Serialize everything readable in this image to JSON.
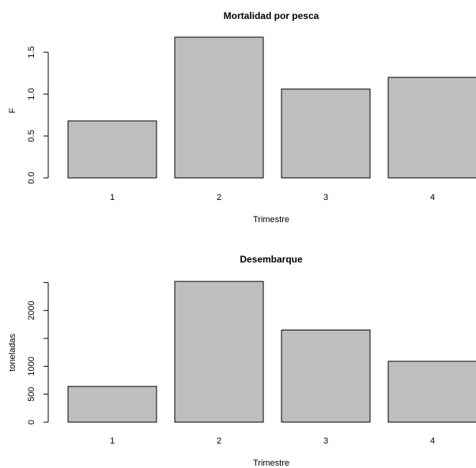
{
  "chart_data": [
    {
      "type": "bar",
      "title": "Mortalidad por pesca",
      "xlabel": "Trimestre",
      "ylabel": "F",
      "categories": [
        "1",
        "2",
        "3",
        "4"
      ],
      "values": [
        0.68,
        1.68,
        1.06,
        1.2
      ],
      "ylim": [
        0,
        1.68
      ],
      "yticks": [
        0,
        0.5,
        1,
        1.5
      ],
      "ytick_labels": [
        "0.0",
        "0.5",
        "1.0",
        "1.5"
      ],
      "bar_color": "#bebebe",
      "grid": false
    },
    {
      "type": "bar",
      "title": "Desembarque",
      "xlabel": "Trimestre",
      "ylabel": "toneladas",
      "categories": [
        "1",
        "2",
        "3",
        "4"
      ],
      "values": [
        640,
        2520,
        1650,
        1090
      ],
      "ylim": [
        0,
        2520
      ],
      "yticks": [
        0,
        500,
        1000,
        1500,
        2000,
        2500
      ],
      "ytick_labels": [
        "0",
        "500",
        "1000",
        "",
        "2000",
        ""
      ],
      "bar_color": "#bebebe",
      "grid": false
    }
  ]
}
